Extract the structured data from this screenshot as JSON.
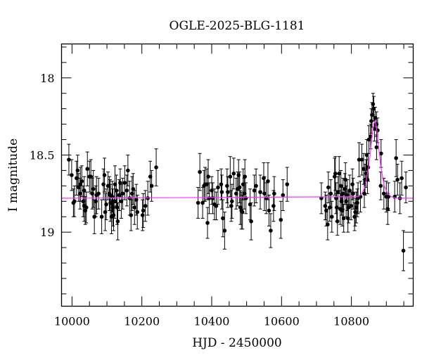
{
  "chart_data": {
    "type": "scatter",
    "title": "OGLE-2025-BLG-1181",
    "xlabel": "HJD - 2450000",
    "ylabel": "I magnitude",
    "xlim": [
      9970,
      10977
    ],
    "ylim": [
      19.48,
      17.78
    ],
    "y_inverted": true,
    "x_ticks": [
      10000,
      10200,
      10400,
      10600,
      10800
    ],
    "x_tick_labels": [
      "10000",
      "10200",
      "10400",
      "10600",
      "10800"
    ],
    "x_minor_step": 50,
    "y_ticks": [
      18,
      18.5,
      19
    ],
    "y_tick_labels": [
      "18",
      "18.5",
      "19"
    ],
    "y_minor_step": 0.1,
    "grid": false,
    "colors": {
      "points": "#000000",
      "errorbars": "#000000",
      "model": "#ff33ff"
    },
    "points": [
      [
        9991,
        18.53,
        0.1
      ],
      [
        9999,
        18.63,
        0.1
      ],
      [
        10004,
        18.81,
        0.09
      ],
      [
        10007,
        18.8,
        0.1
      ],
      [
        10013,
        18.65,
        0.11
      ],
      [
        10016,
        18.6,
        0.1
      ],
      [
        10019,
        18.71,
        0.09
      ],
      [
        10023,
        18.75,
        0.1
      ],
      [
        10024,
        18.69,
        0.11
      ],
      [
        10028,
        18.67,
        0.1
      ],
      [
        10032,
        18.8,
        0.1
      ],
      [
        10035,
        18.73,
        0.09
      ],
      [
        10035,
        18.83,
        0.1
      ],
      [
        10038,
        18.86,
        0.09
      ],
      [
        10041,
        18.84,
        0.1
      ],
      [
        10044,
        18.59,
        0.11
      ],
      [
        10050,
        18.64,
        0.1
      ],
      [
        10054,
        18.64,
        0.11
      ],
      [
        10058,
        18.75,
        0.1
      ],
      [
        10061,
        18.72,
        0.12
      ],
      [
        10064,
        18.9,
        0.11
      ],
      [
        10068,
        18.8,
        0.1
      ],
      [
        10070,
        18.76,
        0.12
      ],
      [
        10076,
        18.75,
        0.1
      ],
      [
        10085,
        18.9,
        0.11
      ],
      [
        10090,
        18.69,
        0.1
      ],
      [
        10093,
        18.63,
        0.11
      ],
      [
        10095,
        18.87,
        0.12
      ],
      [
        10098,
        18.82,
        0.1
      ],
      [
        10103,
        18.7,
        0.09
      ],
      [
        10107,
        18.75,
        0.11
      ],
      [
        10109,
        18.76,
        0.1
      ],
      [
        10110,
        18.81,
        0.12
      ],
      [
        10113,
        18.9,
        0.11
      ],
      [
        10115,
        18.77,
        0.1
      ],
      [
        10117,
        18.84,
        0.12
      ],
      [
        10119,
        18.89,
        0.1
      ],
      [
        10122,
        18.8,
        0.11
      ],
      [
        10123,
        18.69,
        0.12
      ],
      [
        10127,
        18.73,
        0.1
      ],
      [
        10129,
        18.84,
        0.11
      ],
      [
        10131,
        18.93,
        0.12
      ],
      [
        10135,
        18.76,
        0.1
      ],
      [
        10138,
        18.68,
        0.09
      ],
      [
        10141,
        18.8,
        0.11
      ],
      [
        10145,
        18.75,
        0.1
      ],
      [
        10151,
        18.68,
        0.11
      ],
      [
        10157,
        18.73,
        0.1
      ],
      [
        10160,
        18.6,
        0.1
      ],
      [
        10165,
        18.78,
        0.11
      ],
      [
        10169,
        18.89,
        0.1
      ],
      [
        10172,
        18.75,
        0.11
      ],
      [
        10175,
        18.72,
        0.1
      ],
      [
        10179,
        18.84,
        0.11
      ],
      [
        10184,
        18.79,
        0.1
      ],
      [
        10187,
        18.87,
        0.11
      ],
      [
        10202,
        18.89,
        0.1
      ],
      [
        10204,
        18.86,
        0.11
      ],
      [
        10210,
        18.83,
        0.1
      ],
      [
        10217,
        18.78,
        0.11
      ],
      [
        10224,
        18.64,
        0.1
      ],
      [
        10228,
        18.7,
        0.1
      ],
      [
        10241,
        18.58,
        0.12
      ],
      [
        10361,
        18.81,
        0.1
      ],
      [
        10366,
        18.61,
        0.12
      ],
      [
        10374,
        18.81,
        0.1
      ],
      [
        10378,
        18.7,
        0.1
      ],
      [
        10381,
        18.69,
        0.11
      ],
      [
        10386,
        18.69,
        0.1
      ],
      [
        10388,
        18.94,
        0.1
      ],
      [
        10390,
        18.64,
        0.11
      ],
      [
        10393,
        18.78,
        0.1
      ],
      [
        10400,
        18.73,
        0.09
      ],
      [
        10403,
        18.78,
        0.1
      ],
      [
        10408,
        18.82,
        0.1
      ],
      [
        10413,
        18.83,
        0.09
      ],
      [
        10418,
        18.71,
        0.11
      ],
      [
        10427,
        18.69,
        0.1
      ],
      [
        10429,
        18.74,
        0.11
      ],
      [
        10432,
        18.91,
        0.12
      ],
      [
        10437,
        18.99,
        0.12
      ],
      [
        10444,
        18.7,
        0.11
      ],
      [
        10446,
        18.74,
        0.1
      ],
      [
        10453,
        18.64,
        0.13
      ],
      [
        10456,
        18.83,
        0.1
      ],
      [
        10458,
        18.8,
        0.11
      ],
      [
        10463,
        18.62,
        0.1
      ],
      [
        10470,
        18.75,
        0.1
      ],
      [
        10474,
        18.72,
        0.11
      ],
      [
        10477,
        18.63,
        0.1
      ],
      [
        10480,
        18.71,
        0.1
      ],
      [
        10482,
        18.84,
        0.11
      ],
      [
        10485,
        18.86,
        0.12
      ],
      [
        10488,
        18.87,
        0.11
      ],
      [
        10490,
        18.69,
        0.1
      ],
      [
        10493,
        18.75,
        0.1
      ],
      [
        10495,
        18.64,
        0.11
      ],
      [
        10498,
        18.78,
        0.1
      ],
      [
        10510,
        18.82,
        0.1
      ],
      [
        10513,
        18.93,
        0.12
      ],
      [
        10522,
        18.73,
        0.1
      ],
      [
        10527,
        18.7,
        0.11
      ],
      [
        10539,
        18.74,
        0.11
      ],
      [
        10549,
        18.65,
        0.1
      ],
      [
        10551,
        18.75,
        0.11
      ],
      [
        10556,
        18.78,
        0.1
      ],
      [
        10561,
        18.67,
        0.12
      ],
      [
        10564,
        18.86,
        0.1
      ],
      [
        10569,
        18.99,
        0.11
      ],
      [
        10577,
        18.83,
        0.1
      ],
      [
        10579,
        18.75,
        0.11
      ],
      [
        10598,
        18.92,
        0.12
      ],
      [
        10604,
        18.76,
        0.1
      ],
      [
        10616,
        18.69,
        0.11
      ],
      [
        10714,
        18.78,
        0.1
      ],
      [
        10725,
        18.83,
        0.09
      ],
      [
        10728,
        18.86,
        0.1
      ],
      [
        10732,
        18.95,
        0.1
      ],
      [
        10734,
        18.71,
        0.1
      ],
      [
        10738,
        18.84,
        0.09
      ],
      [
        10741,
        18.75,
        0.09
      ],
      [
        10744,
        18.9,
        0.1
      ],
      [
        10752,
        18.64,
        0.12
      ],
      [
        10754,
        18.62,
        0.11
      ],
      [
        10756,
        18.78,
        0.1
      ],
      [
        10758,
        18.84,
        0.09
      ],
      [
        10760,
        18.93,
        0.09
      ],
      [
        10762,
        18.74,
        0.1
      ],
      [
        10765,
        18.62,
        0.11
      ],
      [
        10768,
        18.85,
        0.1
      ],
      [
        10770,
        18.7,
        0.1
      ],
      [
        10772,
        18.8,
        0.09
      ],
      [
        10774,
        18.86,
        0.1
      ],
      [
        10776,
        18.75,
        0.1
      ],
      [
        10778,
        18.91,
        0.09
      ],
      [
        10781,
        18.72,
        0.1
      ],
      [
        10783,
        18.66,
        0.11
      ],
      [
        10785,
        18.8,
        0.1
      ],
      [
        10788,
        18.76,
        0.1
      ],
      [
        10790,
        18.91,
        0.09
      ],
      [
        10792,
        18.84,
        0.1
      ],
      [
        10795,
        18.73,
        0.1
      ],
      [
        10799,
        18.83,
        0.09
      ],
      [
        10803,
        18.69,
        0.1
      ],
      [
        10805,
        18.75,
        0.1
      ],
      [
        10809,
        18.9,
        0.09
      ],
      [
        10811,
        18.87,
        0.09
      ],
      [
        10814,
        18.84,
        0.1
      ],
      [
        10817,
        18.81,
        0.09
      ],
      [
        10819,
        18.78,
        0.1
      ],
      [
        10822,
        18.53,
        0.11
      ],
      [
        10826,
        18.77,
        0.1
      ],
      [
        10830,
        18.53,
        0.1
      ],
      [
        10835,
        18.59,
        0.1
      ],
      [
        10837,
        18.75,
        0.09
      ],
      [
        10839,
        18.66,
        0.1
      ],
      [
        10842,
        18.62,
        0.09
      ],
      [
        10844,
        18.5,
        0.1
      ],
      [
        10846,
        18.66,
        0.09
      ],
      [
        10848,
        18.58,
        0.09
      ],
      [
        10850,
        18.4,
        0.09
      ],
      [
        10855,
        18.38,
        0.08
      ],
      [
        10857,
        18.28,
        0.08
      ],
      [
        10859,
        18.24,
        0.08
      ],
      [
        10862,
        18.17,
        0.07
      ],
      [
        10864,
        18.2,
        0.08
      ],
      [
        10866,
        18.33,
        0.08
      ],
      [
        10868,
        18.26,
        0.07
      ],
      [
        10872,
        18.3,
        0.08
      ],
      [
        10875,
        18.34,
        0.08
      ],
      [
        10872,
        18.45,
        0.08
      ],
      [
        10885,
        18.49,
        0.09
      ],
      [
        10884,
        18.7,
        0.09
      ],
      [
        10893,
        18.75,
        0.1
      ],
      [
        10900,
        18.77,
        0.1
      ],
      [
        10904,
        18.85,
        0.1
      ],
      [
        10906,
        18.77,
        0.09
      ],
      [
        10924,
        18.77,
        0.1
      ],
      [
        10928,
        18.52,
        0.12
      ],
      [
        10932,
        18.66,
        0.1
      ],
      [
        10939,
        18.78,
        0.1
      ],
      [
        10944,
        18.65,
        0.11
      ],
      [
        10949,
        19.12,
        0.13
      ],
      [
        10956,
        18.71,
        0.1
      ]
    ],
    "model": {
      "x": [
        9970,
        10820,
        10830,
        10840,
        10850,
        10855,
        10860,
        10864,
        10867,
        10870,
        10874,
        10879,
        10884,
        10894,
        10904,
        10914,
        10930,
        10977
      ],
      "y": [
        18.78,
        18.77,
        18.75,
        18.7,
        18.57,
        18.47,
        18.36,
        18.3,
        18.28,
        18.3,
        18.36,
        18.47,
        18.57,
        18.7,
        18.75,
        18.77,
        18.78,
        18.78
      ]
    }
  }
}
